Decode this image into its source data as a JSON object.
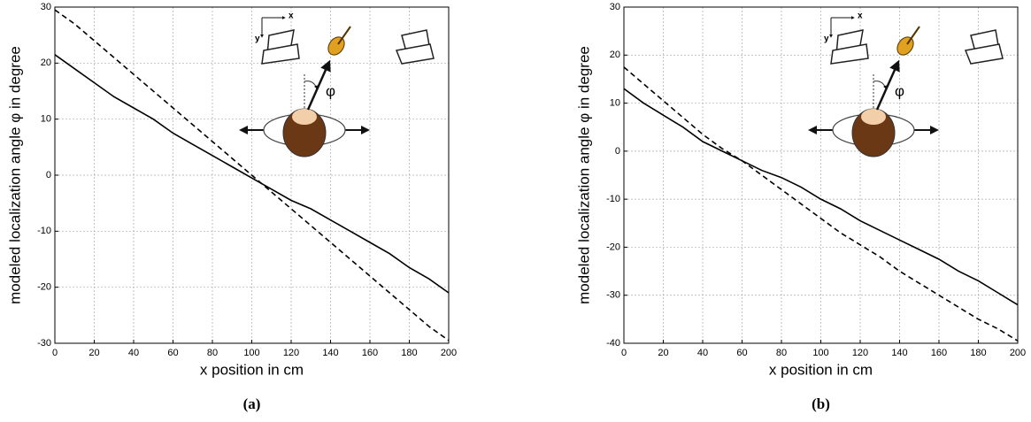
{
  "chart_data": [
    {
      "type": "line",
      "caption": "(a)",
      "xlabel": "x position in cm",
      "ylabel": "modeled localization angle φ in degree",
      "annotations": [
        "x",
        "y",
        "φ"
      ],
      "x": [
        0,
        10,
        20,
        30,
        40,
        50,
        60,
        70,
        80,
        90,
        100,
        110,
        120,
        130,
        140,
        150,
        160,
        170,
        180,
        190,
        200
      ],
      "series": [
        {
          "color": "#000000",
          "style": "solid",
          "values": [
            21.5,
            19,
            16.5,
            14,
            12,
            10,
            7.5,
            5.5,
            3.5,
            1.5,
            -0.5,
            -2.5,
            -4.5,
            -6,
            -8,
            -10,
            -12,
            -14,
            -16.5,
            -18.5,
            -21
          ]
        },
        {
          "color": "#000000",
          "style": "dashed",
          "values": [
            29.5,
            27,
            24,
            21,
            18,
            15,
            12,
            9,
            6,
            3,
            0,
            -3,
            -6,
            -9,
            -12,
            -15,
            -18,
            -21,
            -24,
            -27,
            -29.5
          ]
        }
      ],
      "xlim": [
        0,
        200
      ],
      "xticks": [
        0,
        20,
        40,
        60,
        80,
        100,
        120,
        140,
        160,
        180,
        200
      ],
      "ylim": [
        -30,
        30
      ],
      "yticks": [
        -30,
        -20,
        -10,
        0,
        10,
        20,
        30
      ],
      "grid": true
    },
    {
      "type": "line",
      "caption": "(b)",
      "xlabel": "x position in cm",
      "ylabel": "modeled localization angle φ in degree",
      "annotations": [
        "x",
        "y",
        "φ"
      ],
      "x": [
        0,
        10,
        20,
        30,
        40,
        50,
        60,
        70,
        80,
        90,
        100,
        110,
        120,
        130,
        140,
        150,
        160,
        170,
        180,
        190,
        200
      ],
      "series": [
        {
          "color": "#000000",
          "style": "solid",
          "values": [
            13,
            10,
            7.5,
            5,
            2,
            0,
            -2,
            -4,
            -5.5,
            -7.5,
            -10,
            -12,
            -14.5,
            -16.5,
            -18.5,
            -20.5,
            -22.5,
            -25,
            -27,
            -29.5,
            -32
          ]
        },
        {
          "color": "#000000",
          "style": "dashed",
          "values": [
            17.5,
            14,
            10.5,
            7,
            3.5,
            0.5,
            -2,
            -5,
            -8,
            -11,
            -14,
            -17,
            -19.5,
            -22,
            -25,
            -27.5,
            -30,
            -32.5,
            -35,
            -37,
            -39.5
          ]
        }
      ],
      "xlim": [
        0,
        200
      ],
      "xticks": [
        0,
        20,
        40,
        60,
        80,
        100,
        120,
        140,
        160,
        180,
        200
      ],
      "ylim": [
        -40,
        30
      ],
      "yticks": [
        -40,
        -30,
        -20,
        -10,
        0,
        10,
        20,
        30
      ],
      "grid": true
    }
  ]
}
